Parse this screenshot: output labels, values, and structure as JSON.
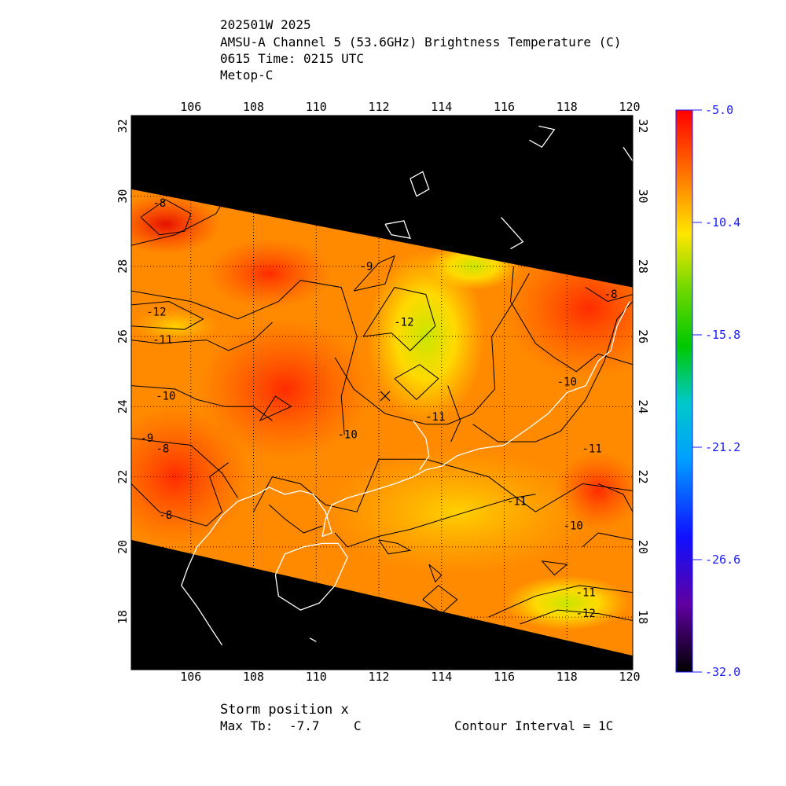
{
  "header": {
    "line1": "202501W 2025",
    "line2": "AMSU-A Channel 5 (53.6GHz) Brightness Temperature (C)",
    "line3": "0615 Time: 0215 UTC",
    "line4": "Metop-C"
  },
  "footer": {
    "storm_position": "Storm position x",
    "max_tb_label": "Max Tb:",
    "max_tb_value": "-7.7",
    "max_tb_unit": "C",
    "contour_interval": "Contour Interval = 1C"
  },
  "colors": {
    "swath_warm": "#ff2a00",
    "swath_mid": "#ff8800",
    "swath_cool": "#ffe600",
    "background": "#000000",
    "coastline": "#ffffff",
    "contour": "#000000",
    "colorbar_label": "#1a1aff"
  },
  "chart_data": {
    "type": "heatmap",
    "xlabel": "",
    "ylabel": "",
    "xlim": [
      104.1,
      120.1
    ],
    "ylim": [
      16.5,
      32.3
    ],
    "x_ticks": [
      "106",
      "108",
      "110",
      "112",
      "114",
      "116",
      "118",
      "120"
    ],
    "y_ticks": [
      "18",
      "20",
      "22",
      "24",
      "26",
      "28",
      "30",
      "32"
    ],
    "grid": true,
    "colorbar": {
      "min": -32.0,
      "max": -5.0,
      "tick_labels": [
        "-5.0",
        "-10.4",
        "-15.8",
        "-21.2",
        "-26.6",
        "-32.0"
      ]
    },
    "swath": {
      "upper_edge": [
        [
          104.1,
          30.2
        ],
        [
          120.1,
          27.4
        ]
      ],
      "lower_edge": [
        [
          104.1,
          20.2
        ],
        [
          120.1,
          16.9
        ]
      ]
    },
    "contour_labels": [
      {
        "text": "-8",
        "lon": 105.0,
        "lat": 29.7
      },
      {
        "text": "-9",
        "lon": 111.6,
        "lat": 27.9
      },
      {
        "text": "-12",
        "lon": 104.9,
        "lat": 26.6
      },
      {
        "text": "-11",
        "lon": 105.1,
        "lat": 25.8
      },
      {
        "text": "-12",
        "lon": 112.8,
        "lat": 26.3
      },
      {
        "text": "-10",
        "lon": 105.2,
        "lat": 24.2
      },
      {
        "text": "-11",
        "lon": 113.8,
        "lat": 23.6
      },
      {
        "text": "-9",
        "lon": 104.6,
        "lat": 23.0
      },
      {
        "text": "-8",
        "lon": 105.1,
        "lat": 22.7
      },
      {
        "text": "-10",
        "lon": 111.0,
        "lat": 23.1
      },
      {
        "text": "-8",
        "lon": 119.4,
        "lat": 27.1
      },
      {
        "text": "-10",
        "lon": 118.0,
        "lat": 24.6
      },
      {
        "text": "-11",
        "lon": 118.8,
        "lat": 22.7
      },
      {
        "text": "-8",
        "lon": 105.2,
        "lat": 20.8
      },
      {
        "text": "-11",
        "lon": 116.4,
        "lat": 21.2
      },
      {
        "text": "-10",
        "lon": 118.2,
        "lat": 20.5
      },
      {
        "text": "-11",
        "lon": 118.6,
        "lat": 18.6
      },
      {
        "text": "-12",
        "lon": 118.6,
        "lat": 18.0
      }
    ],
    "storm_position": {
      "lon": 112.2,
      "lat": 24.3
    },
    "max_tb": -7.7
  }
}
